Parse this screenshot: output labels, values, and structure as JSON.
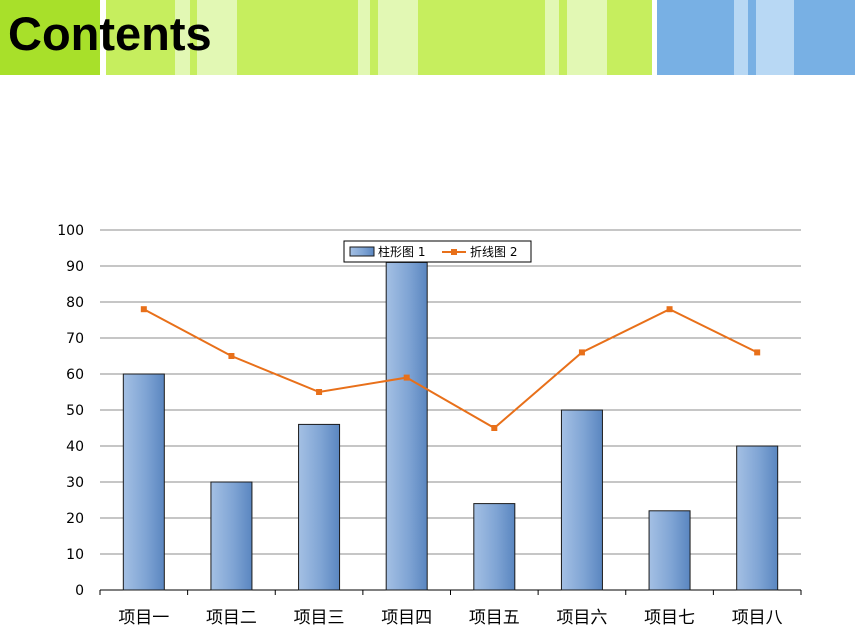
{
  "header": {
    "title": "Contents",
    "colors": {
      "green_dark": "#a8e02a",
      "green": "#c6ee5e",
      "green_light": "#e2f8b4",
      "blue": "#78b0e4",
      "blue_light": "#b8d8f4"
    }
  },
  "chart_data": {
    "type": "bar",
    "title": "",
    "xlabel": "",
    "ylabel": "",
    "categories": [
      "项目一",
      "项目二",
      "项目三",
      "项目四",
      "项目五",
      "项目六",
      "项目七",
      "项目八"
    ],
    "ylim": [
      0,
      100
    ],
    "yticks": [
      0,
      10,
      20,
      30,
      40,
      50,
      60,
      70,
      80,
      90,
      100
    ],
    "grid": true,
    "legend_position": "top-center",
    "series": [
      {
        "name": "柱形图 1",
        "type": "bar",
        "color": "#6a95c9",
        "values": [
          60,
          30,
          46,
          91,
          24,
          50,
          22,
          40
        ]
      },
      {
        "name": "折线图 2",
        "type": "line",
        "color": "#e8701a",
        "values": [
          78,
          65,
          55,
          59,
          45,
          66,
          78,
          66
        ]
      }
    ]
  }
}
